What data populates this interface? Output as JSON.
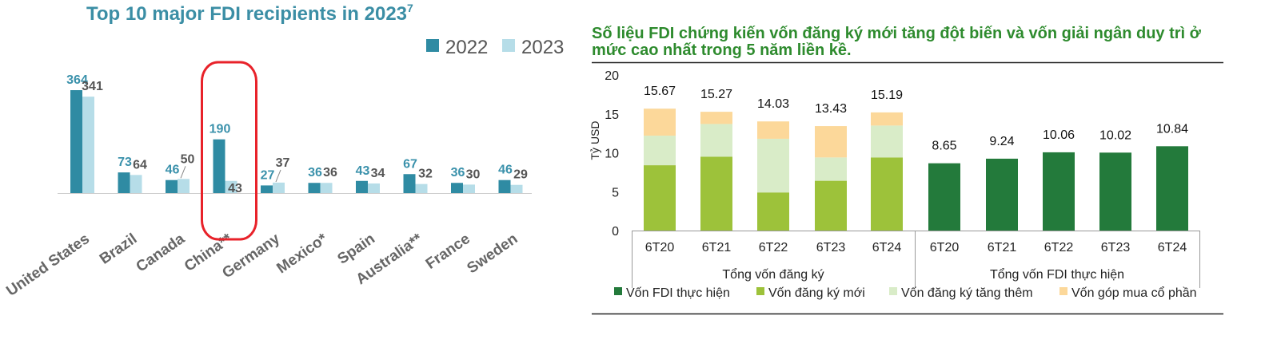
{
  "left_chart": {
    "title": "Top 10 major FDI recipients in 2023",
    "title_footnote": "7",
    "colors": {
      "2022": "#2f8ba3",
      "2023": "#b6dde8",
      "label2022": "#3a91ab",
      "label2023": "#555555",
      "highlight": "#e8222a"
    },
    "highlight_category": "China**"
  },
  "right_chart": {
    "title": "Số liệu FDI chứng kiến vốn đăng ký mới tăng đột biến và vốn giải ngân duy trì ở mức cao nhất trong 5 năm liền kề.",
    "colors": {
      "implemented": "#237a3b",
      "new": "#9dc23a",
      "added": "#d9ecc8",
      "share": "#fcd89a"
    }
  },
  "chart_data": [
    {
      "type": "bar",
      "title": "Top 10 major FDI recipients in 2023",
      "categories": [
        "United States",
        "Brazil",
        "Canada",
        "China**",
        "Germany",
        "Mexico*",
        "Spain",
        "Australia**",
        "France",
        "Sweden"
      ],
      "series": [
        {
          "name": "2022",
          "values": [
            364,
            73,
            46,
            190,
            27,
            36,
            43,
            67,
            36,
            46
          ]
        },
        {
          "name": "2023",
          "values": [
            341,
            64,
            50,
            43,
            37,
            36,
            34,
            32,
            30,
            29
          ]
        }
      ],
      "legend": [
        "2022",
        "2023"
      ],
      "legend_position": "top-right",
      "ylim": [
        0,
        364
      ],
      "grid": false
    },
    {
      "type": "bar",
      "stacked": true,
      "ylabel": "Tỷ USD",
      "ylim": [
        0,
        20
      ],
      "yticks": [
        0,
        5,
        10,
        15,
        20
      ],
      "categories": [
        "6T20",
        "6T21",
        "6T22",
        "6T23",
        "6T24",
        "6T20",
        "6T21",
        "6T22",
        "6T23",
        "6T24"
      ],
      "groups": [
        {
          "label": "Tổng vốn đăng ký",
          "categories": [
            "6T20",
            "6T21",
            "6T22",
            "6T23",
            "6T24"
          ]
        },
        {
          "label": "Tổng vốn FDI thực hiện",
          "categories": [
            "6T20",
            "6T21",
            "6T22",
            "6T23",
            "6T24"
          ]
        }
      ],
      "series": [
        {
          "name": "Vốn FDI thực hiện",
          "values": [
            0,
            0,
            0,
            0,
            0,
            8.65,
            9.24,
            10.06,
            10.02,
            10.84
          ]
        },
        {
          "name": "Vốn đăng ký mới",
          "values": [
            8.4,
            9.5,
            4.9,
            6.4,
            9.4,
            0,
            0,
            0,
            0,
            0
          ]
        },
        {
          "name": "Vốn đăng ký tăng thêm",
          "values": [
            3.8,
            4.2,
            6.9,
            3.0,
            4.1,
            0,
            0,
            0,
            0,
            0
          ]
        },
        {
          "name": "Vốn góp mua cổ phần",
          "values": [
            3.47,
            1.57,
            2.23,
            4.03,
            1.69,
            0,
            0,
            0,
            0,
            0
          ]
        }
      ],
      "totals": [
        "15.67",
        "15.27",
        "14.03",
        "13.43",
        "15.19",
        "8.65",
        "9.24",
        "10.06",
        "10.02",
        "10.84"
      ],
      "legend_position": "bottom",
      "grid": false
    }
  ]
}
